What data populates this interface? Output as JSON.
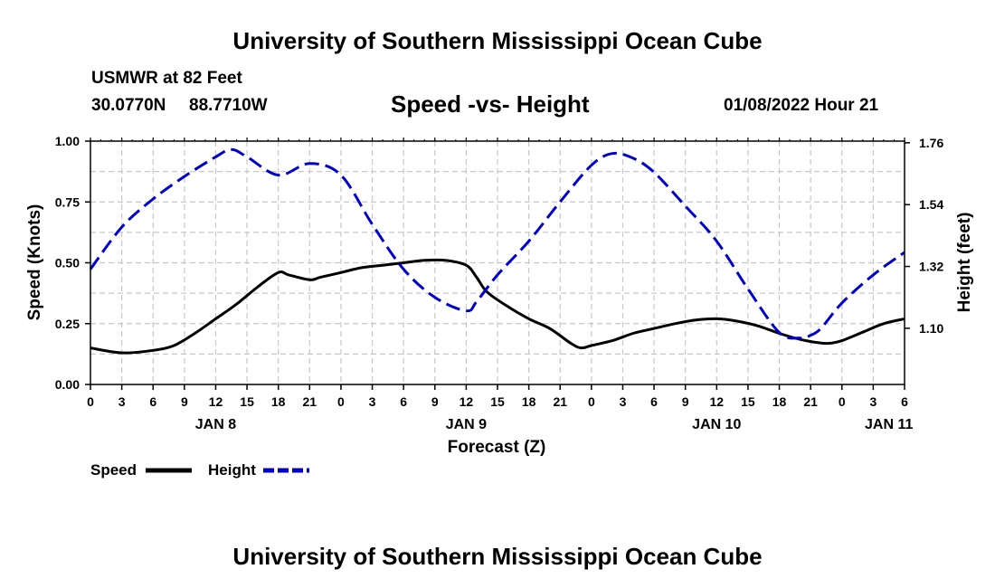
{
  "header": {
    "title": "University of Southern Mississippi Ocean Cube",
    "station": "USMWR at 82 Feet",
    "latitude": "30.0770N",
    "longitude": "88.7710W",
    "datetime": "01/08/2022 Hour 21",
    "footer_title": "University of Southern Mississippi Ocean Cube"
  },
  "chart_data": {
    "type": "line",
    "title": "Speed -vs- Height",
    "xlabel": "Forecast (Z)",
    "ylabel_left": "Speed (Knots)",
    "ylabel_right": "Height (feet)",
    "x_range_hours": [
      0,
      78
    ],
    "x_tick_labels": [
      "0",
      "3",
      "6",
      "9",
      "12",
      "15",
      "18",
      "21",
      "0",
      "3",
      "6",
      "9",
      "12",
      "15",
      "18",
      "21",
      "0",
      "3",
      "6",
      "9",
      "12",
      "15",
      "18",
      "21",
      "0",
      "3",
      "6"
    ],
    "day_labels": [
      {
        "label": "JAN 8",
        "hour": 12
      },
      {
        "label": "JAN 9",
        "hour": 36
      },
      {
        "label": "JAN 10",
        "hour": 60
      },
      {
        "label": "JAN 11",
        "hour": 76.5
      }
    ],
    "ylim_left": [
      0,
      1
    ],
    "y_ticks_left": [
      "0.00",
      "0.25",
      "0.50",
      "0.75",
      "1.00"
    ],
    "ylim_right": [
      0.9,
      1.766
    ],
    "y_ticks_right": [
      {
        "label": "1.10",
        "value": 1.1
      },
      {
        "label": "1.32",
        "value": 1.32
      },
      {
        "label": "1.54",
        "value": 1.54
      },
      {
        "label": "1.76",
        "value": 1.76
      }
    ],
    "grid": true,
    "legend_position": "bottom-left",
    "series": [
      {
        "name": "Speed",
        "axis": "left",
        "color": "#000000",
        "dash": "solid",
        "x": [
          0,
          3,
          6,
          8,
          10,
          12,
          14,
          16,
          18,
          19,
          21,
          22,
          24,
          26,
          28,
          30,
          32,
          34,
          36,
          37,
          38,
          40,
          42,
          44,
          46,
          47,
          48,
          50,
          52,
          54,
          56,
          58,
          60,
          62,
          64,
          66,
          68,
          70,
          71,
          72,
          74,
          76,
          78
        ],
        "values": [
          0.15,
          0.13,
          0.14,
          0.16,
          0.21,
          0.27,
          0.33,
          0.4,
          0.46,
          0.45,
          0.43,
          0.44,
          0.46,
          0.48,
          0.49,
          0.5,
          0.51,
          0.51,
          0.49,
          0.44,
          0.38,
          0.32,
          0.27,
          0.23,
          0.17,
          0.15,
          0.16,
          0.18,
          0.21,
          0.23,
          0.25,
          0.265,
          0.27,
          0.26,
          0.24,
          0.21,
          0.185,
          0.17,
          0.17,
          0.18,
          0.215,
          0.25,
          0.27
        ]
      },
      {
        "name": "Height",
        "axis": "right",
        "color": "#0000cc",
        "dash": "dashed",
        "x": [
          0,
          3,
          6,
          9,
          12,
          13.5,
          15,
          18,
          21,
          24,
          27,
          30,
          33,
          36,
          37,
          39,
          42,
          45,
          48,
          50,
          52,
          54,
          57,
          60,
          63,
          66,
          68,
          69,
          70,
          72,
          75,
          78
        ],
        "values": [
          1.31,
          1.46,
          1.56,
          1.64,
          1.71,
          1.736,
          1.71,
          1.645,
          1.686,
          1.645,
          1.47,
          1.31,
          1.21,
          1.162,
          1.195,
          1.29,
          1.41,
          1.55,
          1.68,
          1.722,
          1.705,
          1.655,
          1.535,
          1.41,
          1.24,
          1.085,
          1.065,
          1.075,
          1.1,
          1.19,
          1.29,
          1.37
        ]
      }
    ]
  },
  "legend": {
    "speed_label": "Speed",
    "height_label": "Height"
  }
}
